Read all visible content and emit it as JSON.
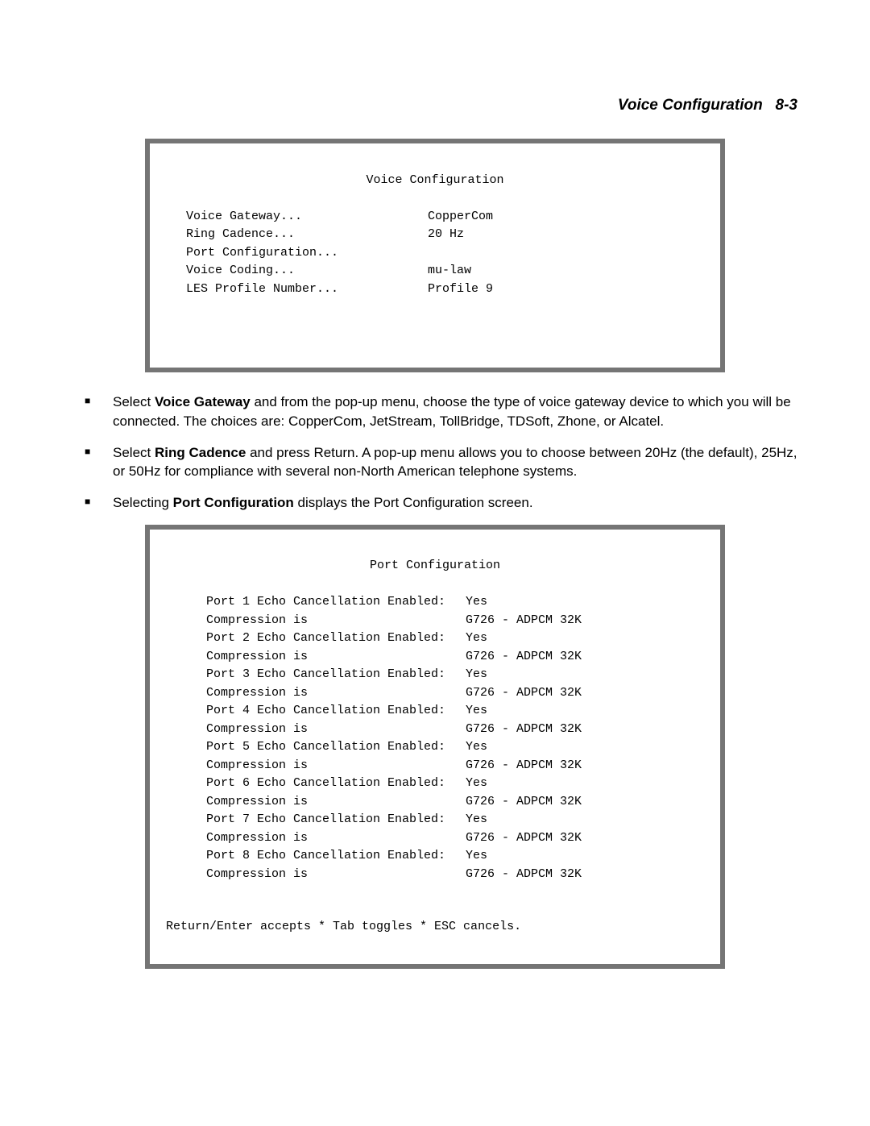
{
  "header": {
    "title": "Voice Configuration",
    "page_ref": "8-3"
  },
  "voice_config": {
    "title": "Voice Configuration",
    "rows": [
      {
        "label": "Voice Gateway...",
        "value": "CopperCom"
      },
      {
        "label": "Ring Cadence...",
        "value": "20 Hz"
      },
      {
        "label": "Port Configuration...",
        "value": ""
      },
      {
        "label": "",
        "value": ""
      },
      {
        "label": "Voice Coding...",
        "value": "mu-law"
      },
      {
        "label": "LES Profile Number...",
        "value": "Profile 9"
      }
    ]
  },
  "bullets": [
    {
      "prefix": "Select ",
      "bold": "Voice Gateway",
      "suffix": " and from the pop-up menu, choose the type of voice gateway device to which you will be connected. The choices are: CopperCom, JetStream, TollBridge, TDSoft, Zhone, or Alcatel."
    },
    {
      "prefix": "Select ",
      "bold": "Ring Cadence",
      "suffix": " and press Return. A pop-up menu allows you to choose between 20Hz (the default), 25Hz, or 50Hz for compliance with several non-North American telephone systems."
    },
    {
      "prefix": "Selecting ",
      "bold": "Port Configuration",
      "suffix": " displays the Port Configuration screen."
    }
  ],
  "port_config": {
    "title": "Port Configuration",
    "rows": [
      {
        "label": "Port 1 Echo Cancellation Enabled:",
        "value": "Yes"
      },
      {
        "label": "Compression is",
        "value": "G726 - ADPCM 32K"
      },
      {
        "label": "Port 2 Echo Cancellation Enabled:",
        "value": "Yes"
      },
      {
        "label": "Compression is",
        "value": "G726 - ADPCM 32K"
      },
      {
        "label": "Port 3 Echo Cancellation Enabled:",
        "value": "Yes"
      },
      {
        "label": "Compression is",
        "value": "G726 - ADPCM 32K"
      },
      {
        "label": "Port 4 Echo Cancellation Enabled:",
        "value": "Yes"
      },
      {
        "label": "Compression is",
        "value": "G726 - ADPCM 32K"
      },
      {
        "label": "Port 5 Echo Cancellation Enabled:",
        "value": "Yes"
      },
      {
        "label": "Compression is",
        "value": "G726 - ADPCM 32K"
      },
      {
        "label": "Port 6 Echo Cancellation Enabled:",
        "value": "Yes"
      },
      {
        "label": "Compression is",
        "value": "G726 - ADPCM 32K"
      },
      {
        "label": "Port 7 Echo Cancellation Enabled:",
        "value": "Yes"
      },
      {
        "label": "Compression is",
        "value": "G726 - ADPCM 32K"
      },
      {
        "label": "Port 8 Echo Cancellation Enabled:",
        "value": "Yes"
      },
      {
        "label": "Compression is",
        "value": "G726 - ADPCM 32K"
      }
    ],
    "footer": "Return/Enter accepts * Tab toggles * ESC cancels."
  }
}
